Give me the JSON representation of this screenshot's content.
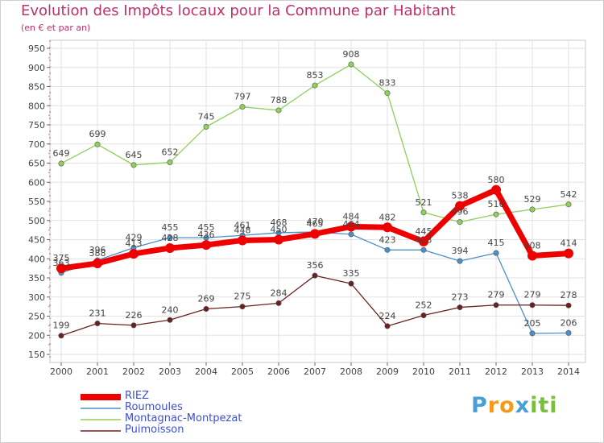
{
  "title": "Evolution des Impôts locaux pour la Commune par Habitant",
  "subtitle": "(en € et par an)",
  "brand": {
    "name": "Proxiti",
    "letters": [
      "P",
      "r",
      "o",
      "x",
      "i",
      "t",
      "i"
    ],
    "letter_colors": [
      "#4a9ed8",
      "#f39a1c",
      "#f39a1c",
      "#4a9ed8",
      "#7abf3a",
      "#7abf3a",
      "#7abf3a"
    ]
  },
  "chart_data": {
    "type": "line",
    "title": "Evolution des Impôts locaux pour la Commune par Habitant",
    "subtitle": "(en € et par an)",
    "xlabel": "",
    "ylabel": "",
    "x": [
      "2000",
      "2001",
      "2002",
      "2003",
      "2004",
      "2005",
      "2006",
      "2007",
      "2008",
      "2009",
      "2010",
      "2011",
      "2012",
      "2013",
      "2014"
    ],
    "yticks": [
      150,
      200,
      250,
      300,
      350,
      400,
      450,
      500,
      550,
      600,
      650,
      700,
      750,
      800,
      850,
      900,
      950
    ],
    "ylim": [
      150,
      950
    ],
    "grid": true,
    "legend_position": "bottom-left",
    "series": [
      {
        "name": "Montagnac-Montpezat",
        "color": "#8fcf5a",
        "values": [
          649,
          699,
          645,
          652,
          745,
          797,
          788,
          853,
          908,
          833,
          521,
          496,
          516,
          529,
          542
        ]
      },
      {
        "name": "Roumoules",
        "color": "#4a90c8",
        "values": [
          363,
          396,
          429,
          455,
          455,
          461,
          468,
          470,
          464,
          423,
          423,
          394,
          415,
          205,
          206
        ]
      },
      {
        "name": "Puimoisson",
        "color": "#6b2020",
        "values": [
          199,
          231,
          226,
          240,
          269,
          275,
          284,
          356,
          335,
          224,
          252,
          273,
          279,
          279,
          278
        ]
      },
      {
        "name": "RIEZ",
        "color": "#ee0000",
        "values": [
          375,
          388,
          413,
          428,
          436,
          448,
          450,
          465,
          484,
          482,
          445,
          538,
          580,
          408,
          414
        ]
      }
    ],
    "legend_order": [
      "RIEZ",
      "Roumoules",
      "Montagnac-Montpezat",
      "Puimoisson"
    ]
  }
}
